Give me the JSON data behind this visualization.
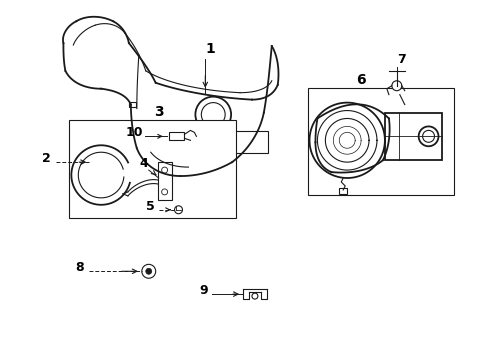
{
  "bg_color": "#ffffff",
  "line_color": "#1a1a1a",
  "text_color": "#000000",
  "fig_width": 4.9,
  "fig_height": 3.6,
  "dpi": 100
}
